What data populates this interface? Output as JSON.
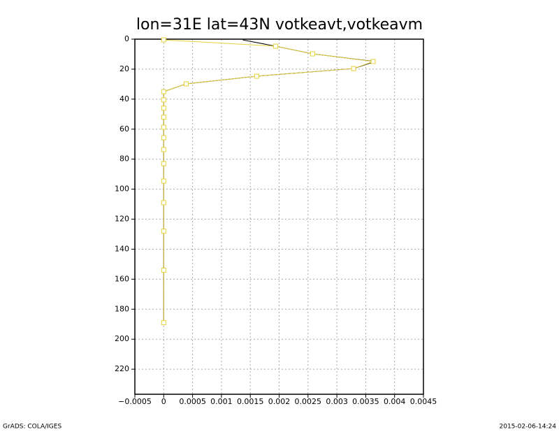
{
  "chart_data": {
    "type": "line",
    "title": "lon=31E lat=43N votkeavt,votkeavm",
    "y": [
      0.5,
      4.7,
      9.8,
      14.9,
      19.6,
      24.7,
      29.8,
      35,
      40.5,
      46,
      52,
      58.7,
      65.7,
      73.6,
      83,
      94.6,
      109,
      128,
      154,
      189
    ],
    "series": [
      {
        "color": "#000000",
        "marker": false,
        "values": [
          0.00137,
          0.00194,
          0.00258,
          0.00366,
          0.00329,
          0.00161,
          0.00039,
          0,
          0,
          0,
          0,
          0,
          0,
          0,
          0,
          0,
          0,
          0,
          0,
          0
        ]
      },
      {
        "color": "#e6d23c",
        "marker": true,
        "values": [
          0,
          0.00194,
          0.00258,
          0.00363,
          0.00329,
          0.00161,
          0.00039,
          0,
          0,
          0,
          0,
          0,
          0,
          0,
          0,
          0,
          0,
          0,
          0,
          0
        ]
      }
    ],
    "xlim": [
      -0.0005,
      0.0045
    ],
    "xticks": [
      {
        "value": -0.0005,
        "label": "−0.0005"
      },
      0,
      0.0005,
      0.001,
      0.0015,
      0.002,
      0.0025,
      0.003,
      0.0035,
      0.004,
      0.0045
    ],
    "ylim": [
      0,
      236.7
    ],
    "y_inverted": true,
    "yticks": [
      0,
      20,
      40,
      60,
      80,
      100,
      120,
      140,
      160,
      180,
      200,
      220
    ],
    "grid": true,
    "footer_left": "GrADS: COLA/IGES",
    "footer_right": "2015-02-06-14:24"
  }
}
